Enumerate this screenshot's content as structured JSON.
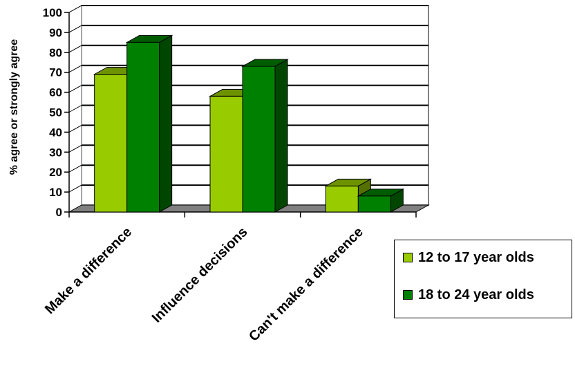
{
  "chart_data": {
    "type": "bar",
    "title": "",
    "xlabel": "",
    "ylabel": "% agree or strongly agree",
    "ylim": [
      0,
      100
    ],
    "yticks": [
      0,
      10,
      20,
      30,
      40,
      50,
      60,
      70,
      80,
      90,
      100
    ],
    "categories": [
      "Make a difference",
      "Influence decisions",
      "Can't make a difference"
    ],
    "series": [
      {
        "name": "12 to 17 year olds",
        "values": [
          69,
          58,
          13
        ],
        "color": "#99CC00"
      },
      {
        "name": "18 to 24 year olds",
        "values": [
          85,
          73,
          8
        ],
        "color": "#008000"
      }
    ],
    "grid": true,
    "legend_position": "bottom-right",
    "style": "3d-clustered"
  }
}
